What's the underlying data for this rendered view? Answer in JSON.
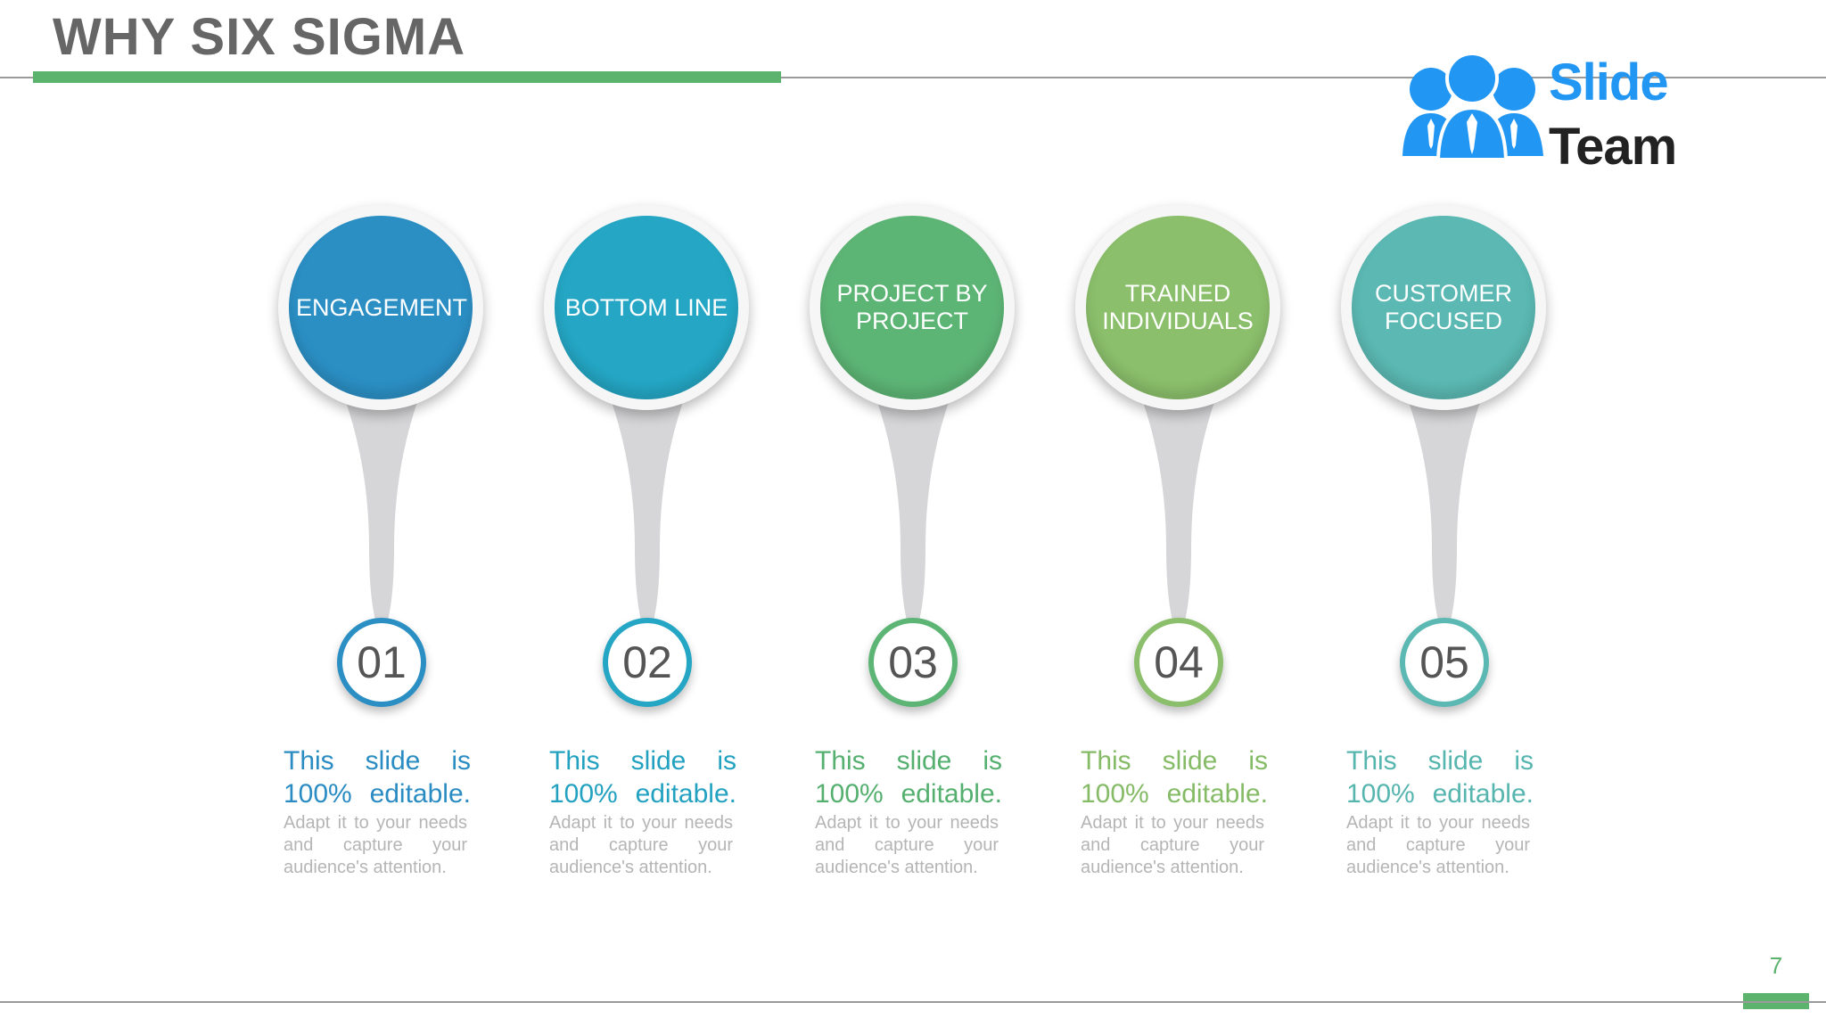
{
  "slide": {
    "title": "WHY SIX SIGMA",
    "page_number": "7"
  },
  "logo": {
    "word1": "Slide",
    "word2": "Team"
  },
  "colors": {
    "accent": "#5cb36e",
    "rule": "#9a9a9a",
    "stem": "#d6d6d8"
  },
  "steps": [
    {
      "label": "ENGAGEMENT",
      "number": "01",
      "headline": "This slide is 100% editable.",
      "body": "Adapt it to your needs and capture your audience's attention.",
      "color": "#2b8fc4",
      "headline_color": "#2a8cc2"
    },
    {
      "label": "BOTTOM LINE",
      "number": "02",
      "headline": "This slide is 100% editable.",
      "body": "Adapt it to your needs and capture your audience's attention.",
      "color": "#24a6c4",
      "headline_color": "#23a1c0"
    },
    {
      "label": "PROJECT BY PROJECT",
      "number": "03",
      "headline": "This slide is 100% editable.",
      "body": "Adapt it to your needs and capture your audience's attention.",
      "color": "#5db575",
      "headline_color": "#55b070"
    },
    {
      "label": "TRAINED INDIVIDUALS",
      "number": "04",
      "headline": "This slide is 100% editable.",
      "body": "Adapt it to your needs and capture your audience's attention.",
      "color": "#8bbf6b",
      "headline_color": "#85bb66"
    },
    {
      "label": "CUSTOMER FOCUSED",
      "number": "05",
      "headline": "This slide is 100% editable.",
      "body": "Adapt it to your needs and capture your audience's attention.",
      "color": "#5bb8b2",
      "headline_color": "#56b5ae"
    }
  ]
}
